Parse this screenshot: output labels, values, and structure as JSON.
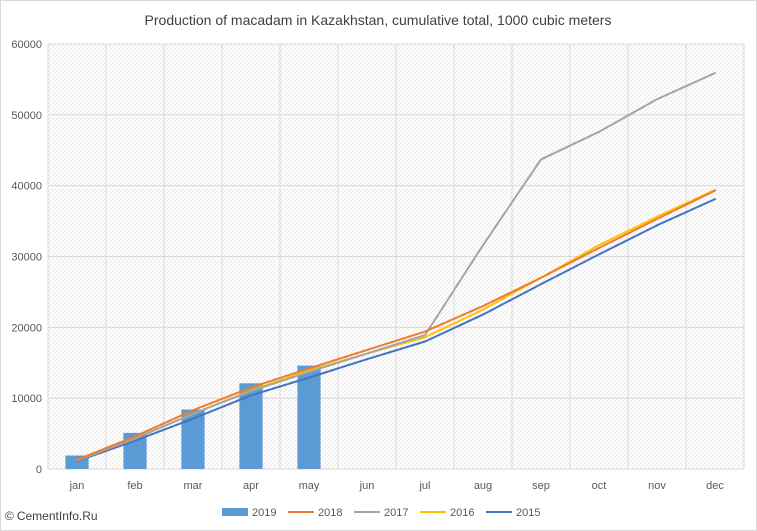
{
  "credit": {
    "symbol": "©",
    "text": "CementInfo.Ru"
  },
  "chart_data": {
    "type": "bar",
    "title": "Production of macadam in Kazakhstan, cumulative total, 1000 cubic meters",
    "xlabel": "",
    "ylabel": "",
    "categories": [
      "jan",
      "feb",
      "mar",
      "apr",
      "may",
      "jun",
      "jul",
      "aug",
      "sep",
      "oct",
      "nov",
      "dec"
    ],
    "ylim": [
      0,
      60000
    ],
    "yticks": [
      0,
      10000,
      20000,
      30000,
      40000,
      50000,
      60000
    ],
    "grid": "hatched plot area",
    "legend_position": "bottom",
    "series": [
      {
        "name": "2019",
        "kind": "bar",
        "color": "#5b9bd5",
        "values": [
          1900,
          5100,
          8400,
          12100,
          14600,
          null,
          null,
          null,
          null,
          null,
          null,
          null
        ]
      },
      {
        "name": "2018",
        "kind": "line",
        "color": "#ed7d31",
        "values": [
          1300,
          4600,
          8300,
          11500,
          14200,
          16800,
          19400,
          23000,
          27000,
          31200,
          35300,
          39300
        ]
      },
      {
        "name": "2017",
        "kind": "line",
        "color": "#a5a5a5",
        "values": [
          1200,
          4300,
          7800,
          11000,
          13700,
          16300,
          18900,
          31600,
          43700,
          47600,
          52200,
          55900
        ]
      },
      {
        "name": "2016",
        "kind": "line",
        "color": "#ffc000",
        "values": [
          1200,
          4300,
          7800,
          11100,
          13900,
          16300,
          18600,
          22500,
          27000,
          31600,
          35600,
          39400
        ]
      },
      {
        "name": "2015",
        "kind": "line",
        "color": "#4472c4",
        "values": [
          1100,
          4000,
          7100,
          10400,
          12900,
          15500,
          18000,
          21800,
          26100,
          30300,
          34400,
          38100
        ]
      }
    ]
  }
}
